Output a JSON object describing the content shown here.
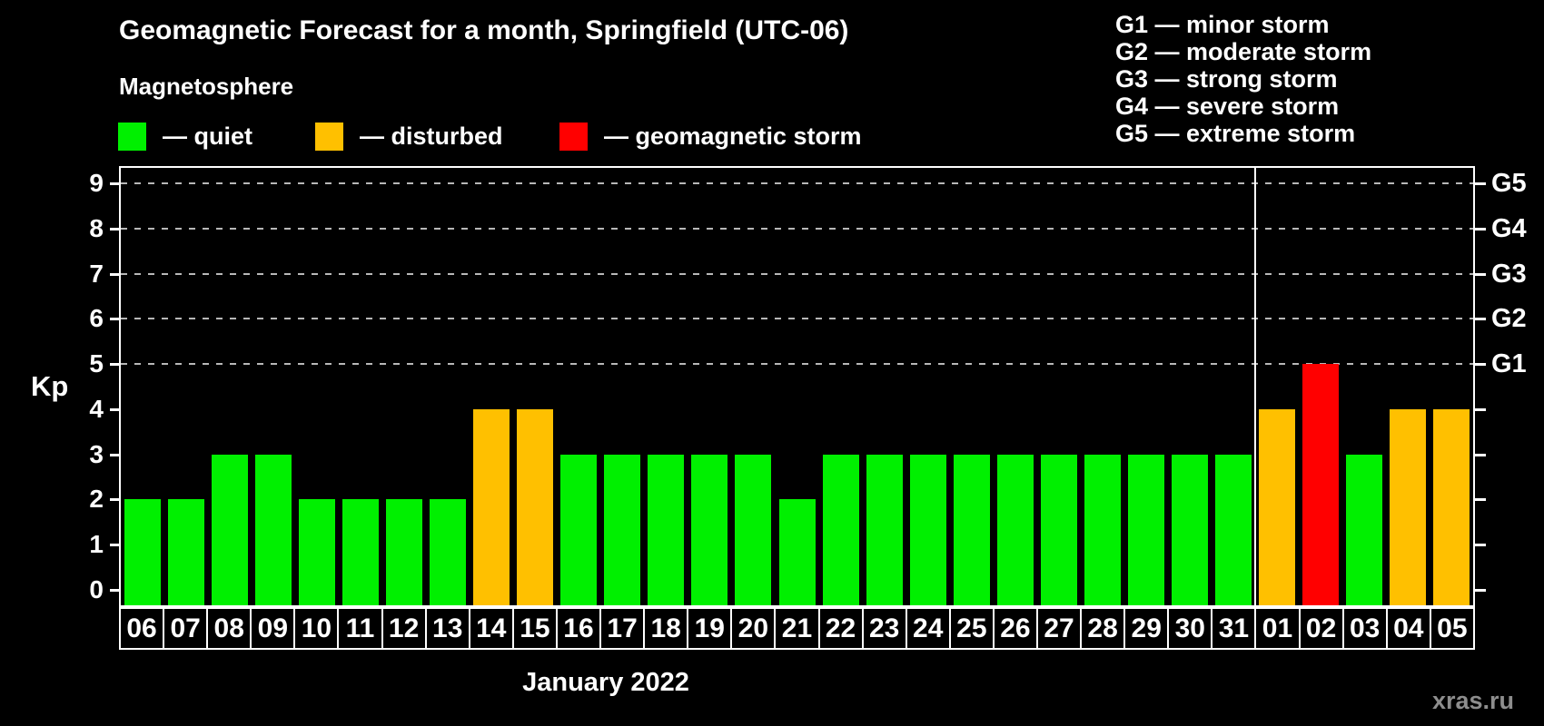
{
  "page": {
    "background": "#000000",
    "watermark": "xras.ru"
  },
  "header": {
    "title": "Geomagnetic Forecast for a month, Springfield (UTC-06)",
    "subtitle": "Magnetosphere",
    "legend": [
      {
        "status": "quiet",
        "label": "— quiet",
        "color": "#00f000"
      },
      {
        "status": "disturbed",
        "label": "— disturbed",
        "color": "#ffc000"
      },
      {
        "status": "storm",
        "label": "— geomagnetic storm",
        "color": "#ff0000"
      }
    ],
    "g_scale_legend": [
      "G1 — minor storm",
      "G2 — moderate storm",
      "G3 — strong storm",
      "G4 — severe storm",
      "G5 — extreme storm"
    ]
  },
  "chart_data": {
    "type": "bar",
    "title": "Geomagnetic Forecast for a month, Springfield (UTC-06)",
    "xlabel": "January 2022",
    "ylabel": "Kp",
    "ylim": [
      0,
      9
    ],
    "y_ticks": [
      0,
      1,
      2,
      3,
      4,
      5,
      6,
      7,
      8,
      9
    ],
    "gridlines_at_kp": [
      5,
      6,
      7,
      8,
      9
    ],
    "grid_style": "dashed horizontal lines at storm levels only",
    "legend_position": "top-left",
    "right_axis_labels": [
      {
        "kp": 5,
        "label": "G1"
      },
      {
        "kp": 6,
        "label": "G2"
      },
      {
        "kp": 7,
        "label": "G3"
      },
      {
        "kp": 8,
        "label": "G4"
      },
      {
        "kp": 9,
        "label": "G5"
      }
    ],
    "month_separator_after_day": "31",
    "categories": [
      "06",
      "07",
      "08",
      "09",
      "10",
      "11",
      "12",
      "13",
      "14",
      "15",
      "16",
      "17",
      "18",
      "19",
      "20",
      "21",
      "22",
      "23",
      "24",
      "25",
      "26",
      "27",
      "28",
      "29",
      "30",
      "31",
      "01",
      "02",
      "03",
      "04",
      "05"
    ],
    "values": [
      2,
      2,
      3,
      3,
      2,
      2,
      2,
      2,
      4,
      4,
      3,
      3,
      3,
      3,
      3,
      2,
      3,
      3,
      3,
      3,
      3,
      3,
      3,
      3,
      3,
      3,
      4,
      5,
      3,
      4,
      4
    ],
    "statuses": [
      "quiet",
      "quiet",
      "quiet",
      "quiet",
      "quiet",
      "quiet",
      "quiet",
      "quiet",
      "disturbed",
      "disturbed",
      "quiet",
      "quiet",
      "quiet",
      "quiet",
      "quiet",
      "quiet",
      "quiet",
      "quiet",
      "quiet",
      "quiet",
      "quiet",
      "quiet",
      "quiet",
      "quiet",
      "quiet",
      "quiet",
      "disturbed",
      "storm",
      "quiet",
      "disturbed",
      "disturbed"
    ],
    "status_colors": {
      "quiet": "#00f000",
      "disturbed": "#ffc000",
      "storm": "#ff0000"
    }
  }
}
